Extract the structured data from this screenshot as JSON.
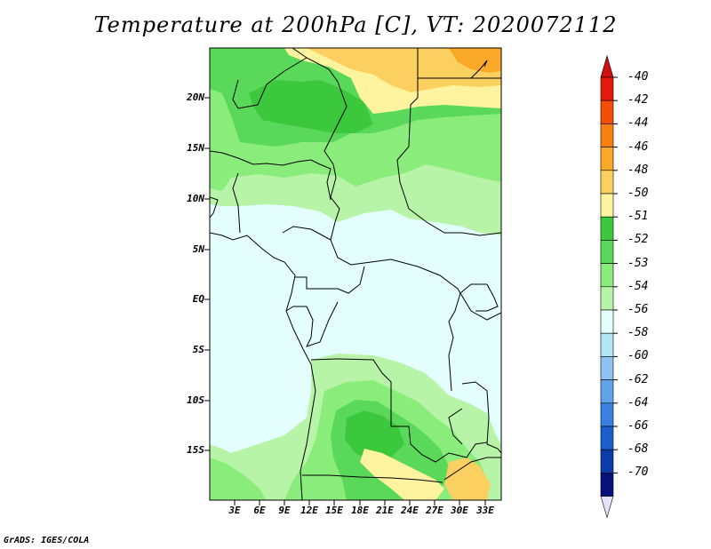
{
  "title": "Temperature at 200hPa [C], VT: 2020072112",
  "credit": "GrADS: IGES/COLA",
  "lat_ticks": [
    "20N",
    "15N",
    "10N",
    "5N",
    "EQ",
    "5S",
    "10S",
    "15S"
  ],
  "lon_ticks": [
    "3E",
    "6E",
    "9E",
    "12E",
    "15E",
    "18E",
    "21E",
    "24E",
    "27E",
    "30E",
    "33E"
  ],
  "colorbar": {
    "labels": [
      "-40",
      "-42",
      "-44",
      "-46",
      "-48",
      "-50",
      "-51",
      "-52",
      "-53",
      "-54",
      "-56",
      "-58",
      "-60",
      "-62",
      "-64",
      "-66",
      "-68",
      "-70"
    ],
    "colors": [
      "#e31a0a",
      "#f24e0a",
      "#f88010",
      "#faa828",
      "#fcd060",
      "#fef4a0",
      "#3cc83c",
      "#5ad85a",
      "#8aec7a",
      "#b8f4a8",
      "#e4fefe",
      "#b4e6f4",
      "#8ec2f0",
      "#62a2ea",
      "#3a80e0",
      "#1a5ecc",
      "#0a3caa",
      "#08107a"
    ],
    "top_arrow_color": "#d01010",
    "bottom_arrow_color": "#e4e2f8"
  }
}
